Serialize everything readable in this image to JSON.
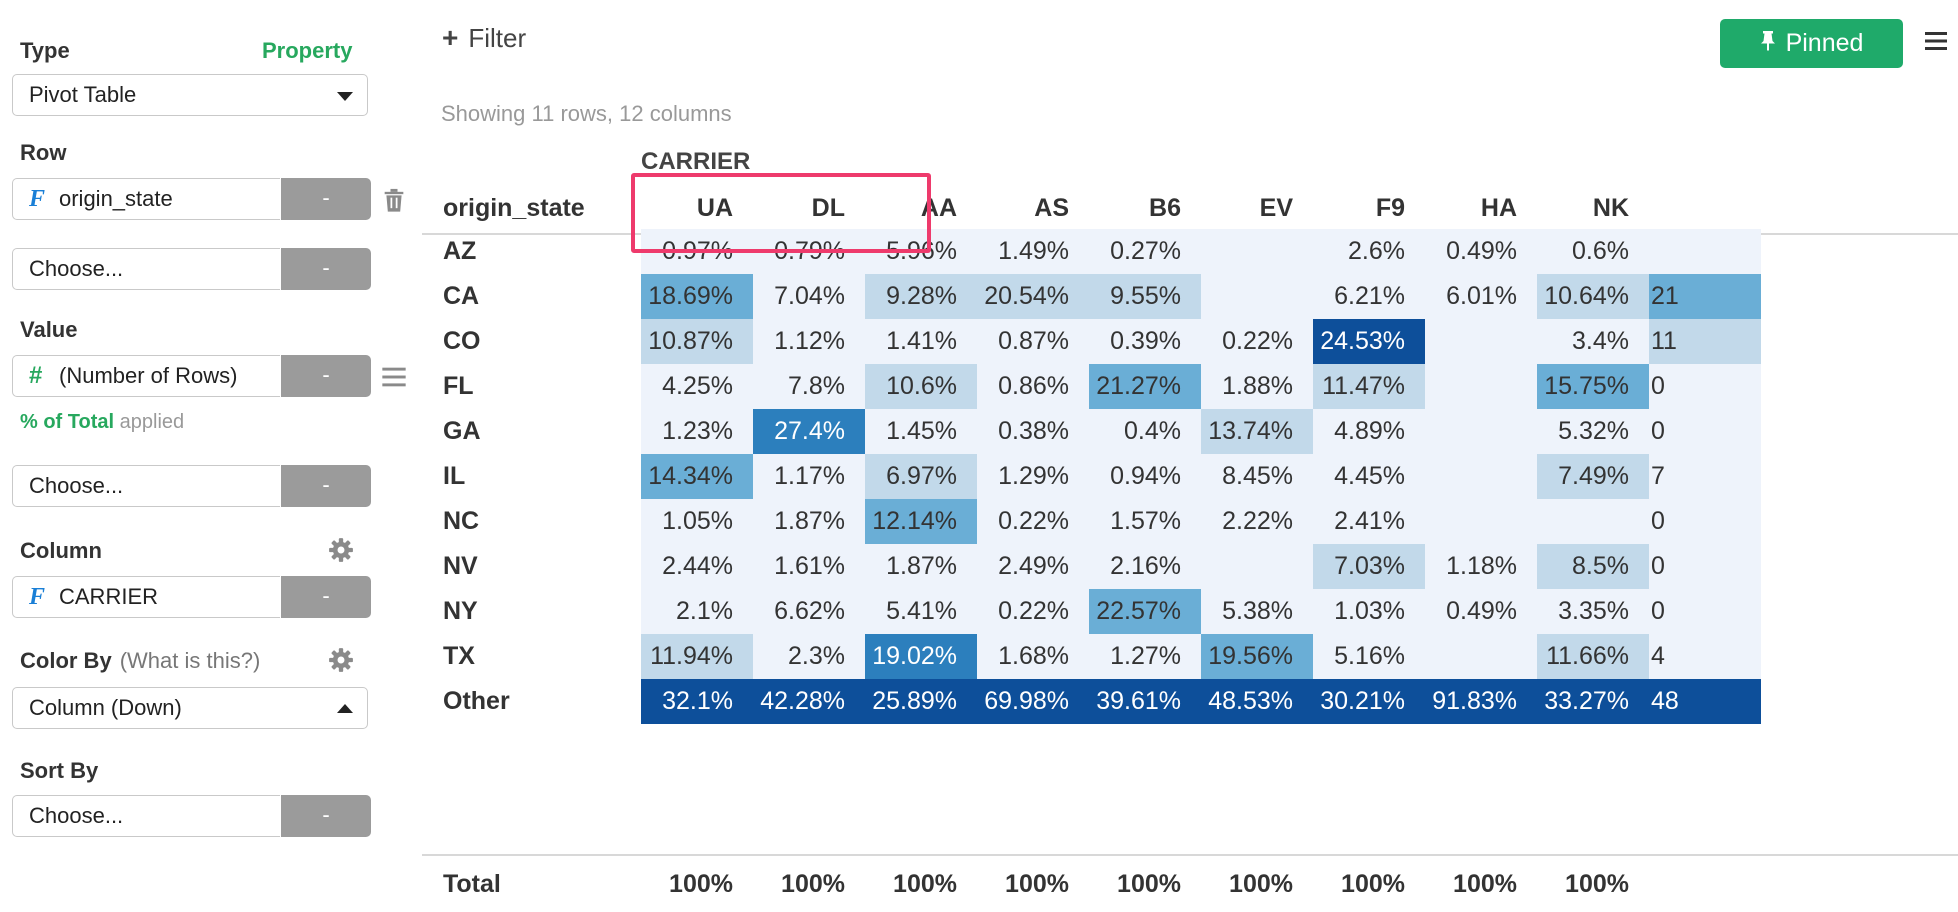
{
  "sidebar": {
    "type_label": "Type",
    "property_link": "Property",
    "type_value": "Pivot Table",
    "row_label": "Row",
    "row_field": "origin_state",
    "row_choose": "Choose...",
    "value_label": "Value",
    "value_field": "(Number of Rows)",
    "pct_total": "% of Total",
    "applied": "applied",
    "value_choose": "Choose...",
    "column_label": "Column",
    "column_field": "CARRIER",
    "color_by_label": "Color By",
    "color_by_hint": "(What is this?)",
    "color_by_value": "Column (Down)",
    "sort_by_label": "Sort By",
    "sort_choose": "Choose...",
    "minus": "-"
  },
  "toolbar": {
    "filter_label": "Filter",
    "pinned_label": "Pinned"
  },
  "summary": "Showing 11 rows, 12 columns",
  "pivot": {
    "column_group_label": "CARRIER",
    "row_header": "origin_state",
    "columns": [
      "UA",
      "DL",
      "AA",
      "AS",
      "B6",
      "EV",
      "F9",
      "HA",
      "NK",
      ""
    ],
    "rows": [
      {
        "label": "AZ",
        "cells": [
          "0.97%",
          "0.79%",
          "5.96%",
          "1.49%",
          "0.27%",
          "",
          "2.6%",
          "0.49%",
          "0.6%",
          ""
        ],
        "levels": [
          0,
          0,
          0,
          0,
          0,
          0,
          0,
          0,
          0,
          0
        ]
      },
      {
        "label": "CA",
        "cells": [
          "18.69%",
          "7.04%",
          "9.28%",
          "20.54%",
          "9.55%",
          "",
          "6.21%",
          "6.01%",
          "10.64%",
          "21"
        ],
        "levels": [
          2,
          0,
          1,
          1,
          1,
          0,
          0,
          0,
          1,
          2
        ]
      },
      {
        "label": "CO",
        "cells": [
          "10.87%",
          "1.12%",
          "1.41%",
          "0.87%",
          "0.39%",
          "0.22%",
          "24.53%",
          "",
          "3.4%",
          "11"
        ],
        "levels": [
          1,
          0,
          0,
          0,
          0,
          0,
          4,
          0,
          0,
          1
        ]
      },
      {
        "label": "FL",
        "cells": [
          "4.25%",
          "7.8%",
          "10.6%",
          "0.86%",
          "21.27%",
          "1.88%",
          "11.47%",
          "",
          "15.75%",
          "0"
        ],
        "levels": [
          0,
          0,
          1,
          0,
          2,
          0,
          1,
          0,
          2,
          0
        ]
      },
      {
        "label": "GA",
        "cells": [
          "1.23%",
          "27.4%",
          "1.45%",
          "0.38%",
          "0.4%",
          "13.74%",
          "4.89%",
          "",
          "5.32%",
          "0"
        ],
        "levels": [
          0,
          3,
          0,
          0,
          0,
          1,
          0,
          0,
          0,
          0
        ]
      },
      {
        "label": "IL",
        "cells": [
          "14.34%",
          "1.17%",
          "6.97%",
          "1.29%",
          "0.94%",
          "8.45%",
          "4.45%",
          "",
          "7.49%",
          "7"
        ],
        "levels": [
          2,
          0,
          1,
          0,
          0,
          0,
          0,
          0,
          1,
          0
        ]
      },
      {
        "label": "NC",
        "cells": [
          "1.05%",
          "1.87%",
          "12.14%",
          "0.22%",
          "1.57%",
          "2.22%",
          "2.41%",
          "",
          "",
          "0"
        ],
        "levels": [
          0,
          0,
          2,
          0,
          0,
          0,
          0,
          0,
          0,
          0
        ]
      },
      {
        "label": "NV",
        "cells": [
          "2.44%",
          "1.61%",
          "1.87%",
          "2.49%",
          "2.16%",
          "",
          "7.03%",
          "1.18%",
          "8.5%",
          "0"
        ],
        "levels": [
          0,
          0,
          0,
          0,
          0,
          0,
          1,
          0,
          1,
          0
        ]
      },
      {
        "label": "NY",
        "cells": [
          "2.1%",
          "6.62%",
          "5.41%",
          "0.22%",
          "22.57%",
          "5.38%",
          "1.03%",
          "0.49%",
          "3.35%",
          "0"
        ],
        "levels": [
          0,
          0,
          0,
          0,
          2,
          0,
          0,
          0,
          0,
          0
        ]
      },
      {
        "label": "TX",
        "cells": [
          "11.94%",
          "2.3%",
          "19.02%",
          "1.68%",
          "1.27%",
          "19.56%",
          "5.16%",
          "",
          "11.66%",
          "4"
        ],
        "levels": [
          1,
          0,
          3,
          0,
          0,
          2,
          0,
          0,
          1,
          0
        ]
      },
      {
        "label": "Other",
        "cells": [
          "32.1%",
          "42.28%",
          "25.89%",
          "69.98%",
          "39.61%",
          "48.53%",
          "30.21%",
          "91.83%",
          "33.27%",
          "48"
        ],
        "levels": [
          4,
          4,
          4,
          4,
          4,
          4,
          4,
          4,
          4,
          4
        ]
      }
    ],
    "total": {
      "label": "Total",
      "cells": [
        "100%",
        "100%",
        "100%",
        "100%",
        "100%",
        "100%",
        "100%",
        "100%",
        "100%",
        ""
      ]
    },
    "level_colors": [
      "#eef3fb",
      "#c2d9ea",
      "#6aaed6",
      "#2c7fbd",
      "#0d4f9a"
    ],
    "level_text_colors": [
      "#333333",
      "#333333",
      "#333333",
      "#ffffff",
      "#ffffff"
    ],
    "highlight_color": "#ee3a6c"
  },
  "icons": {
    "field_icon": "F",
    "number_icon": "#",
    "trash": "trash-icon",
    "menu": "list-icon",
    "gear": "gear-icon",
    "pin": "pin-icon",
    "plus": "+"
  }
}
